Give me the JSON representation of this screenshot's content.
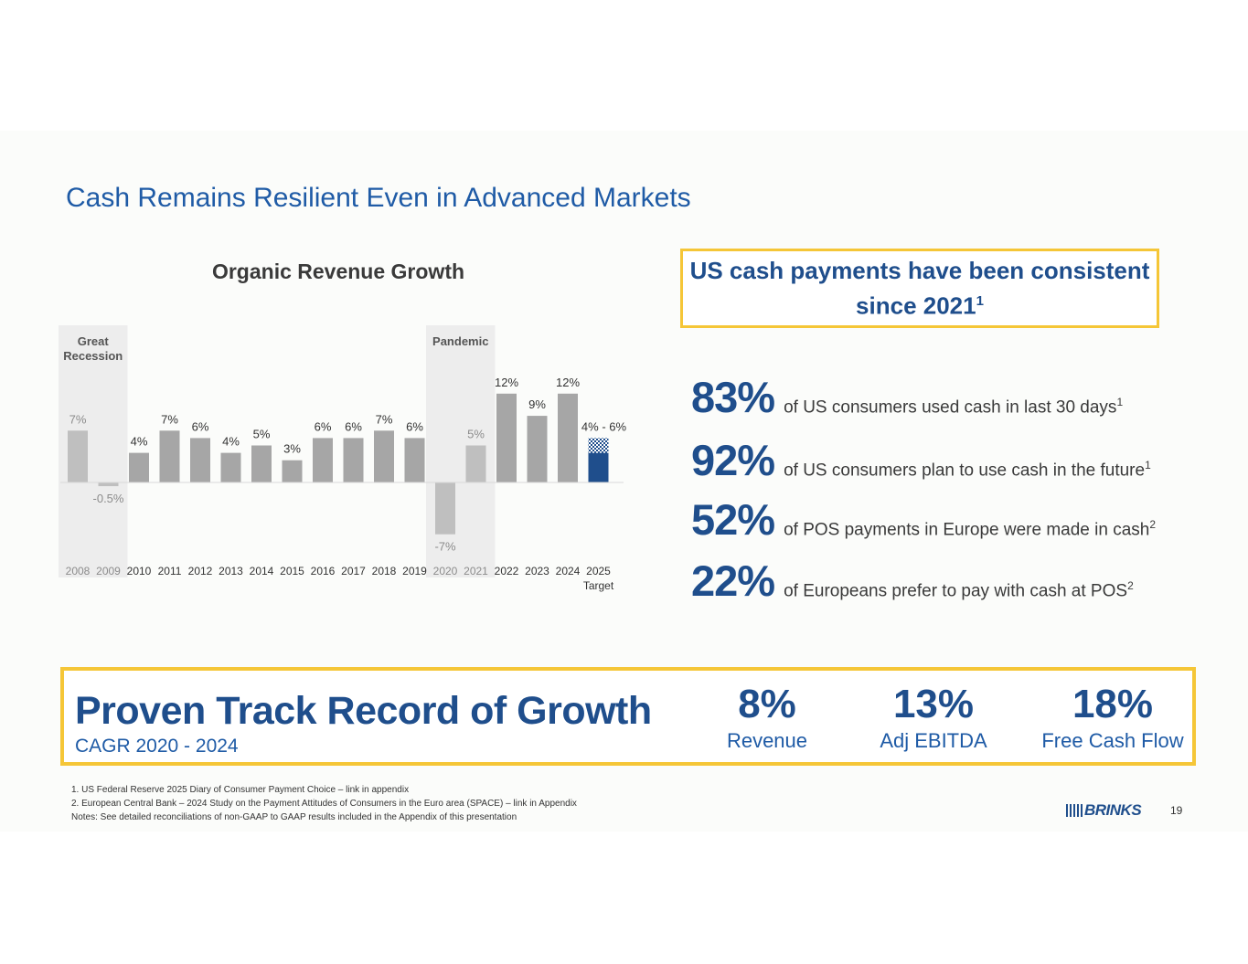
{
  "title": "Cash Remains Resilient Even in Advanced Markets",
  "chart_data": {
    "type": "bar",
    "title": "Organic Revenue Growth",
    "categories": [
      "2008",
      "2009",
      "2010",
      "2011",
      "2012",
      "2013",
      "2014",
      "2015",
      "2016",
      "2017",
      "2018",
      "2019",
      "2020",
      "2021",
      "2022",
      "2023",
      "2024",
      "2025"
    ],
    "category_sublabels": {
      "2025": "Target"
    },
    "values": [
      7,
      -0.5,
      4,
      7,
      6,
      4,
      5,
      3,
      6,
      6,
      7,
      6,
      -7,
      5,
      12,
      9,
      12,
      6
    ],
    "data_labels": [
      "7%",
      "-0.5%",
      "4%",
      "7%",
      "6%",
      "4%",
      "5%",
      "3%",
      "6%",
      "6%",
      "7%",
      "6%",
      "-7%",
      "5%",
      "12%",
      "9%",
      "12%",
      "4% - 6%"
    ],
    "target_range": {
      "category": "2025",
      "low": 4,
      "high": 6
    },
    "shaded_periods": [
      {
        "label": "Great Recession",
        "start": "2008",
        "end": "2009"
      },
      {
        "label": "Pandemic",
        "start": "2020",
        "end": "2021"
      }
    ],
    "colors": {
      "bar": "#a6a6a6",
      "shaded_bar": "#bfbfbf",
      "target": "#1f4e8c",
      "shade": "#ededed"
    },
    "ylim": [
      -8,
      13
    ],
    "xlabel": "",
    "ylabel": ""
  },
  "callout": {
    "text": "US cash payments have been consistent since 2021",
    "footnote_mark": "1"
  },
  "stats": [
    {
      "value": "83%",
      "desc": "of US consumers used cash in last 30 days",
      "note": "1"
    },
    {
      "value": "92%",
      "desc": "of US consumers plan to use cash in the future",
      "note": "1"
    },
    {
      "value": "52%",
      "desc": "of POS payments in Europe were made in cash",
      "note": "2"
    },
    {
      "value": "22%",
      "desc": "of Europeans prefer to pay with cash at POS",
      "note": "2"
    }
  ],
  "growth": {
    "title": "Proven Track Record of Growth",
    "subtitle": "CAGR 2020 - 2024",
    "metrics": [
      {
        "value": "8%",
        "label": "Revenue"
      },
      {
        "value": "13%",
        "label": "Adj EBITDA"
      },
      {
        "value": "18%",
        "label": "Free Cash Flow"
      }
    ]
  },
  "footnotes": [
    "1. US Federal Reserve 2025 Diary of Consumer Payment Choice – link in appendix",
    "2. European Central Bank – 2024 Study on the Payment Attitudes of Consumers in the Euro area (SPACE) – link in Appendix",
    "Notes: See detailed reconciliations of non-GAAP to GAAP results included in the Appendix of this presentation"
  ],
  "logo": {
    "text": "BRINKS"
  },
  "page_number": "19",
  "colors": {
    "primary": "#1f4e8c",
    "accent": "#f5c637"
  }
}
